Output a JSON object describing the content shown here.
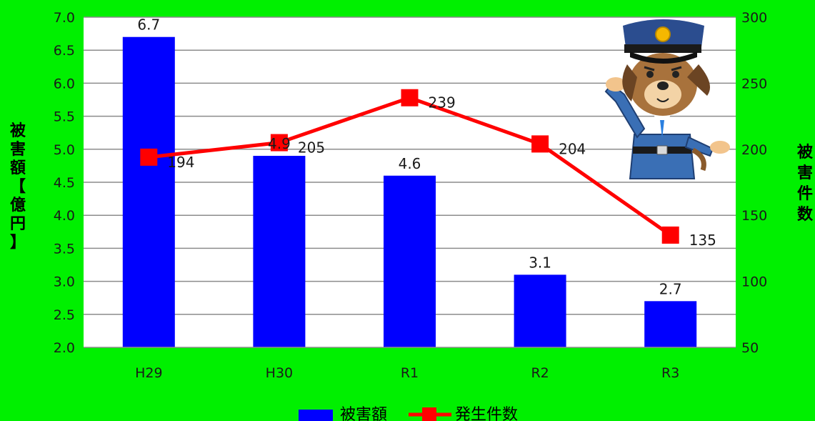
{
  "chart_data": {
    "type": "bar+line",
    "categories": [
      "H29",
      "H30",
      "R1",
      "R2",
      "R3"
    ],
    "series": [
      {
        "name": "被害額",
        "type": "bar",
        "axis": "left",
        "values": [
          6.7,
          4.9,
          4.6,
          3.1,
          2.7
        ],
        "labels": [
          "6.7",
          "4.9",
          "4.6",
          "3.1",
          "2.7"
        ],
        "color": "#0000ff"
      },
      {
        "name": "発生件数",
        "type": "line",
        "axis": "right",
        "values": [
          194,
          205,
          239,
          204,
          135
        ],
        "labels": [
          "194",
          "205",
          "239",
          "204",
          "135"
        ],
        "color": "#ff0000"
      }
    ],
    "y_left": {
      "label": "被害額【億円】",
      "min": 2.0,
      "max": 7.0,
      "ticks": [
        "7.0",
        "6.5",
        "6.0",
        "5.5",
        "5.0",
        "4.5",
        "4.0",
        "3.5",
        "3.0",
        "2.5",
        "2.0"
      ]
    },
    "y_right": {
      "label": "被害件数",
      "min": 50,
      "max": 300,
      "ticks": [
        "300",
        "250",
        "200",
        "150",
        "100",
        "50"
      ]
    },
    "grid": true,
    "legend_position": "bottom",
    "plot_background": "#ffffff",
    "page_background": "#00f000"
  },
  "illustration": {
    "icon": "police-dog-saluting-icon"
  }
}
